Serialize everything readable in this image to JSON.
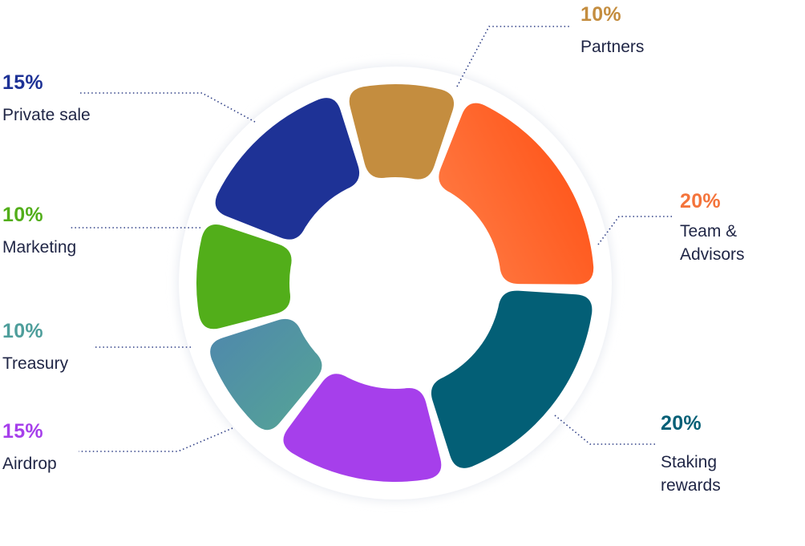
{
  "chart_data": {
    "type": "pie",
    "variant": "donut",
    "title": "",
    "slices": [
      {
        "key": "partners",
        "percent_label": "10%",
        "value": 10,
        "name_lines": [
          "Partners"
        ],
        "color": "#C48D3F"
      },
      {
        "key": "team",
        "percent_label": "20%",
        "value": 20,
        "name_lines": [
          "Team &",
          "Advisors"
        ],
        "color": "#FF5A1F",
        "color_light": "#FF7A3C",
        "percent_color": "#F4743B"
      },
      {
        "key": "staking",
        "percent_label": "20%",
        "value": 20,
        "name_lines": [
          "Staking",
          "rewards"
        ],
        "color": "#035F76"
      },
      {
        "key": "airdrop",
        "percent_label": "15%",
        "value": 15,
        "name_lines": [
          "Airdrop"
        ],
        "color": "#A63FEB"
      },
      {
        "key": "treasury",
        "percent_label": "10%",
        "value": 10,
        "name_lines": [
          "Treasury"
        ],
        "color": "#4E8BA7",
        "color_light": "#549F97",
        "percent_color": "#4E9E9B"
      },
      {
        "key": "marketing",
        "percent_label": "10%",
        "value": 10,
        "name_lines": [
          "Marketing"
        ],
        "color": "#52AE1A"
      },
      {
        "key": "private",
        "percent_label": "15%",
        "value": 15,
        "name_lines": [
          "Private sale"
        ],
        "color": "#1E3296"
      }
    ]
  }
}
